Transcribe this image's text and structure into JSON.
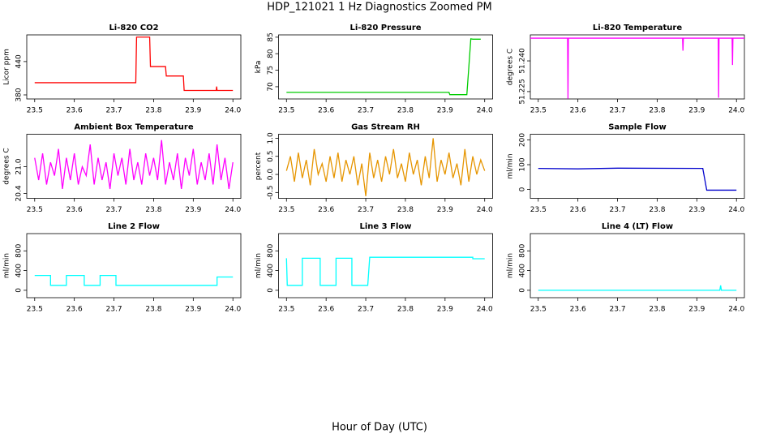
{
  "title": "HDP_121021  1 Hz Diagnostics Zoomed PM",
  "xlabel": "Hour of Day (UTC)",
  "chart_data": [
    {
      "type": "line",
      "title": "Li-820 CO2",
      "ylabel": "Licor ppm",
      "xlim": [
        23.48,
        24.02
      ],
      "xticks": [
        23.5,
        23.6,
        23.7,
        23.8,
        23.9,
        {
          "value": 24,
          "label": "24.0"
        }
      ],
      "ylim": [
        372.7,
        488
      ],
      "yticks": [
        380,
        440
      ],
      "series": [
        {
          "color": "#ff0000",
          "x": [
            23.5,
            23.755,
            23.757,
            23.79,
            23.792,
            23.83,
            23.832,
            23.875,
            23.877,
            23.958,
            23.959,
            23.96,
            24.0
          ],
          "values": [
            402,
            402,
            484,
            484,
            431,
            431,
            414,
            414,
            388,
            388,
            395,
            388,
            388
          ]
        }
      ]
    },
    {
      "type": "line",
      "title": "Li-820 Pressure",
      "ylabel": "kPa",
      "xlim": [
        23.48,
        24.02
      ],
      "xticks": [
        23.5,
        23.6,
        23.7,
        23.8,
        23.9,
        {
          "value": 24,
          "label": "24.0"
        }
      ],
      "ylim": [
        66.3,
        85.7
      ],
      "yticks": [
        70,
        75,
        80,
        85
      ],
      "series": [
        {
          "color": "#00cc00",
          "x": [
            23.5,
            23.91,
            23.912,
            23.955,
            23.96,
            23.965,
            23.97,
            23.99
          ],
          "values": [
            68.3,
            68.3,
            67.6,
            67.6,
            76,
            84.5,
            84.4,
            84.4
          ]
        }
      ]
    },
    {
      "type": "line",
      "title": "Li-820 Temperature",
      "ylabel": "degrees C",
      "xlim": [
        23.48,
        24.02
      ],
      "xticks": [
        23.5,
        23.6,
        23.7,
        23.8,
        23.9,
        {
          "value": 24,
          "label": "24.0"
        }
      ],
      "ylim": [
        51.2214,
        51.2527
      ],
      "yticks": [
        51.225,
        {
          "value": 51.24,
          "label": "51.240"
        }
      ],
      "series": [
        {
          "color": "#ff00ff",
          "x": [
            23.48,
            23.574,
            23.575,
            23.576,
            23.864,
            23.865,
            23.866,
            23.954,
            23.955,
            23.956,
            23.989,
            23.99,
            23.991,
            24.02
          ],
          "values": [
            51.2511,
            51.2511,
            51.2215,
            51.2511,
            51.2511,
            51.245,
            51.2511,
            51.2511,
            51.222,
            51.2511,
            51.2511,
            51.238,
            51.2511,
            51.2511
          ]
        }
      ]
    },
    {
      "type": "line",
      "title": "Ambient Box Temperature",
      "ylabel": "degrees C",
      "xlim": [
        23.48,
        24.02
      ],
      "xticks": [
        23.5,
        23.6,
        23.7,
        23.8,
        23.9,
        {
          "value": 24,
          "label": "24.0"
        }
      ],
      "ylim": [
        20.29,
        21.73
      ],
      "yticks": [
        20.4,
        {
          "value": 21,
          "label": "21.0"
        }
      ],
      "series": [
        {
          "color": "#ff00ff",
          "x": [
            23.5,
            23.51,
            23.52,
            23.53,
            23.54,
            23.55,
            23.56,
            23.57,
            23.58,
            23.59,
            23.6,
            23.61,
            23.62,
            23.63,
            23.64,
            23.65,
            23.66,
            23.67,
            23.68,
            23.69,
            23.7,
            23.71,
            23.72,
            23.73,
            23.74,
            23.75,
            23.76,
            23.77,
            23.78,
            23.79,
            23.8,
            23.81,
            23.82,
            23.83,
            23.84,
            23.85,
            23.86,
            23.87,
            23.88,
            23.89,
            23.9,
            23.91,
            23.92,
            23.93,
            23.94,
            23.95,
            23.96,
            23.97,
            23.98,
            23.99,
            24.0
          ],
          "values": [
            21.2,
            20.7,
            21.3,
            20.6,
            21.1,
            20.8,
            21.4,
            20.5,
            21.2,
            20.7,
            21.3,
            20.6,
            21.0,
            20.8,
            21.5,
            20.6,
            21.2,
            20.7,
            21.1,
            20.5,
            21.3,
            20.8,
            21.2,
            20.6,
            21.4,
            20.7,
            21.1,
            20.6,
            21.3,
            20.8,
            21.2,
            20.7,
            21.6,
            20.6,
            21.1,
            20.7,
            21.3,
            20.5,
            21.2,
            20.8,
            21.4,
            20.6,
            21.1,
            20.7,
            21.3,
            20.6,
            21.5,
            20.7,
            21.2,
            20.5,
            21.1
          ]
        }
      ]
    },
    {
      "type": "line",
      "title": "Gas Stream RH",
      "ylabel": "percent",
      "xlim": [
        23.48,
        24.02
      ],
      "xticks": [
        23.5,
        23.6,
        23.7,
        23.8,
        23.9,
        {
          "value": 24,
          "label": "24.0"
        }
      ],
      "ylim": [
        -0.66,
        1.11
      ],
      "yticks": [
        -0.5,
        {
          "value": 0,
          "label": "0.0"
        },
        0.5,
        {
          "value": 1,
          "label": "1.0"
        }
      ],
      "series": [
        {
          "color": "#e69500",
          "x": [
            23.5,
            23.51,
            23.52,
            23.53,
            23.54,
            23.55,
            23.56,
            23.57,
            23.58,
            23.59,
            23.6,
            23.61,
            23.62,
            23.63,
            23.64,
            23.65,
            23.66,
            23.67,
            23.68,
            23.69,
            23.7,
            23.71,
            23.72,
            23.73,
            23.74,
            23.75,
            23.76,
            23.77,
            23.78,
            23.79,
            23.8,
            23.81,
            23.82,
            23.83,
            23.84,
            23.85,
            23.86,
            23.87,
            23.88,
            23.89,
            23.9,
            23.91,
            23.92,
            23.93,
            23.94,
            23.95,
            23.96,
            23.97,
            23.98,
            23.99,
            24.0
          ],
          "values": [
            0.1,
            0.5,
            -0.2,
            0.6,
            -0.1,
            0.4,
            -0.3,
            0.7,
            0.0,
            0.3,
            -0.2,
            0.5,
            -0.1,
            0.6,
            -0.2,
            0.4,
            0.0,
            0.5,
            -0.3,
            0.3,
            -0.6,
            0.6,
            -0.1,
            0.4,
            -0.2,
            0.5,
            0.0,
            0.7,
            -0.1,
            0.3,
            -0.2,
            0.6,
            0.0,
            0.4,
            -0.3,
            0.5,
            -0.1,
            1.0,
            -0.2,
            0.4,
            0.0,
            0.6,
            -0.1,
            0.3,
            -0.3,
            0.7,
            -0.2,
            0.5,
            0.0,
            0.4,
            0.1
          ]
        }
      ]
    },
    {
      "type": "line",
      "title": "Sample Flow",
      "ylabel": "ml/min",
      "xlim": [
        23.48,
        24.02
      ],
      "xticks": [
        23.5,
        23.6,
        23.7,
        23.8,
        23.9,
        {
          "value": 24,
          "label": "24.0"
        }
      ],
      "ylim": [
        -36,
        223
      ],
      "yticks": [
        0,
        100,
        200
      ],
      "series": [
        {
          "color": "#0000cc",
          "x": [
            23.5,
            23.6,
            23.7,
            23.915,
            23.925,
            24.0
          ],
          "values": [
            85,
            83,
            86,
            85,
            -3,
            -3
          ]
        }
      ]
    },
    {
      "type": "line",
      "title": "Line 2 Flow",
      "ylabel": "ml/min",
      "xlim": [
        23.48,
        24.02
      ],
      "xticks": [
        23.5,
        23.6,
        23.7,
        23.8,
        23.9,
        {
          "value": 24,
          "label": "24.0"
        }
      ],
      "ylim": [
        -150,
        1150
      ],
      "yticks": [
        0,
        400,
        800
      ],
      "series": [
        {
          "color": "#00ffff",
          "x": [
            23.5,
            23.54,
            23.54,
            23.58,
            23.58,
            23.625,
            23.625,
            23.665,
            23.665,
            23.705,
            23.705,
            23.96,
            23.96,
            24.0
          ],
          "values": [
            300,
            300,
            100,
            100,
            300,
            300,
            100,
            100,
            300,
            300,
            100,
            100,
            270,
            270
          ]
        }
      ]
    },
    {
      "type": "line",
      "title": "Line 3 Flow",
      "ylabel": "ml/min",
      "xlim": [
        23.48,
        24.02
      ],
      "xticks": [
        23.5,
        23.6,
        23.7,
        23.8,
        23.9,
        {
          "value": 24,
          "label": "24.0"
        }
      ],
      "ylim": [
        -150,
        1150
      ],
      "yticks": [
        0,
        400,
        800
      ],
      "series": [
        {
          "color": "#00ffff",
          "x": [
            23.5,
            23.502,
            23.54,
            23.54,
            23.585,
            23.585,
            23.625,
            23.625,
            23.665,
            23.665,
            23.705,
            23.71,
            23.97,
            23.97,
            24.0
          ],
          "values": [
            650,
            100,
            100,
            650,
            650,
            100,
            100,
            650,
            650,
            100,
            100,
            670,
            670,
            640,
            640
          ]
        }
      ]
    },
    {
      "type": "line",
      "title": "Line 4 (LT) Flow",
      "ylabel": "ml/min",
      "xlim": [
        23.48,
        24.02
      ],
      "xticks": [
        23.5,
        23.6,
        23.7,
        23.8,
        23.9,
        {
          "value": 24,
          "label": "24.0"
        }
      ],
      "ylim": [
        -150,
        1150
      ],
      "yticks": [
        0,
        400,
        800
      ],
      "series": [
        {
          "color": "#00ffff",
          "x": [
            23.5,
            23.958,
            23.96,
            23.962,
            24.0
          ],
          "values": [
            0,
            0,
            100,
            0,
            0
          ]
        }
      ]
    }
  ]
}
